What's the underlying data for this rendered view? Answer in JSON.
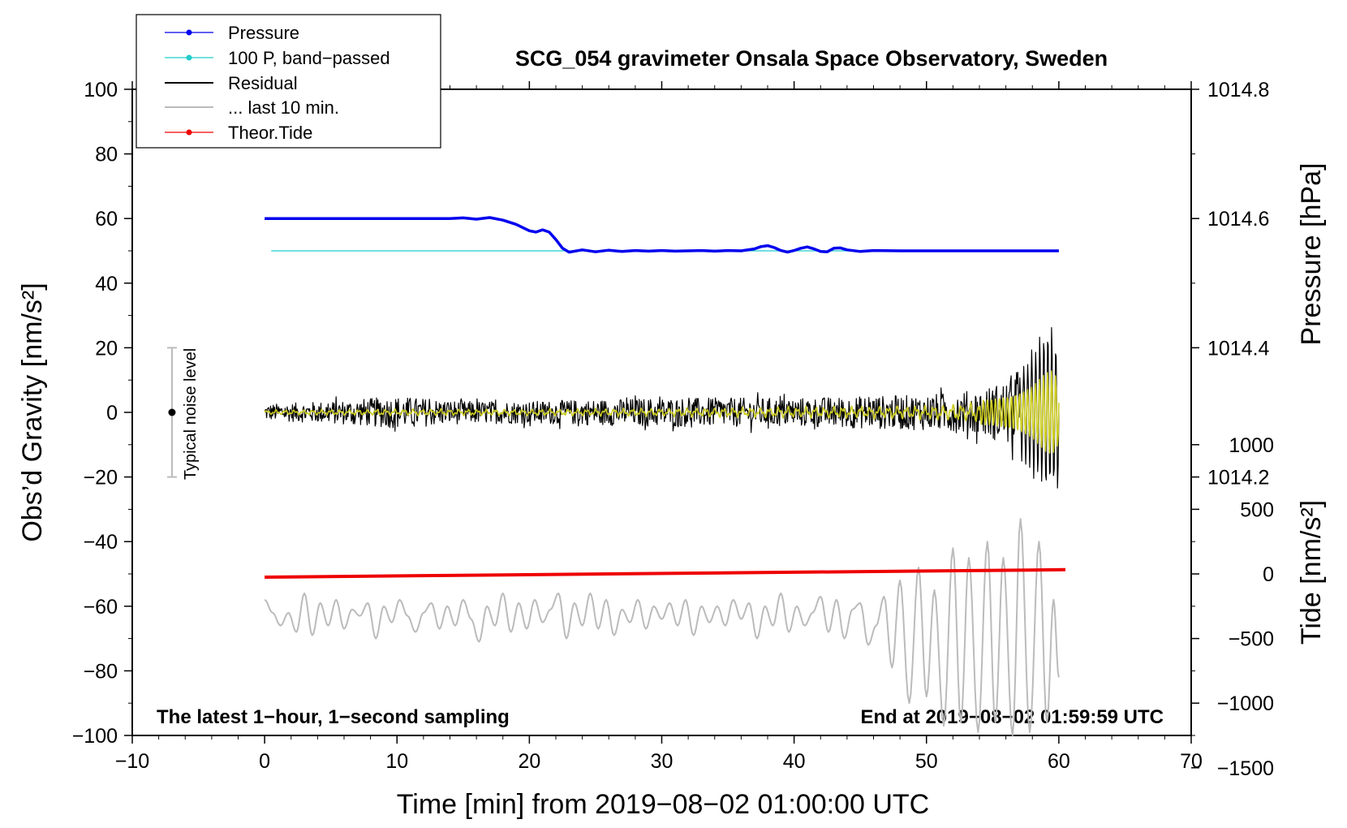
{
  "chart_data": {
    "type": "line",
    "title": "SCG_054 gravimeter Onsala Space Observatory, Sweden",
    "xlabel": "Time [min] from 2019−08−02 01:00:00 UTC",
    "ylabel_left": "Obs’d Gravity [nm/s²]",
    "ylabel_right_pressure": "Pressure [hPa]",
    "ylabel_right_tide": "Tide [nm/s²]",
    "xlim": [
      -10,
      70
    ],
    "ylim": [
      -100,
      100
    ],
    "x_ticks": [
      -10,
      0,
      10,
      20,
      30,
      40,
      50,
      60,
      70
    ],
    "x_tick_labels": [
      "−10",
      "0",
      "10",
      "20",
      "30",
      "40",
      "50",
      "60",
      "70"
    ],
    "y_ticks": [
      -100,
      -80,
      -60,
      -40,
      -20,
      0,
      20,
      40,
      60,
      80,
      100
    ],
    "y_tick_labels": [
      "−100",
      "−80",
      "−60",
      "−40",
      "−20",
      "0",
      "20",
      "40",
      "60",
      "80",
      "100"
    ],
    "pressure_axis": {
      "ticks": [
        1014.2,
        1014.4,
        1014.6,
        1014.8
      ],
      "tick_labels": [
        "1014.2",
        "1014.4",
        "1014.6",
        "1014.8"
      ],
      "gravity_per_hpa": 200,
      "ref_hpa": 1014.6,
      "ref_gravity": 60
    },
    "tide_axis": {
      "ticks": [
        1000,
        500,
        0,
        -500,
        -1000,
        -1500
      ],
      "tick_labels": [
        "1000",
        "500",
        "0",
        "−500",
        "−1000",
        "−1500"
      ],
      "gravity_per_unit": 0.04,
      "ref_tide": 0,
      "ref_gravity": -50
    },
    "legend": {
      "position": "top-left",
      "entries": [
        {
          "label": "Pressure",
          "color": "#0000ee",
          "marker": true
        },
        {
          "label": "100 P, band−passed",
          "color": "#22cccc",
          "marker": true
        },
        {
          "label": "Residual",
          "color": "#000000",
          "marker": false
        },
        {
          "label": "... last 10 min.",
          "color": "#bbbbbb",
          "marker": false
        },
        {
          "label": "Theor.Tide",
          "color": "#ee0000",
          "marker": true
        }
      ]
    },
    "annotations": {
      "bottom_left": "The latest 1−hour, 1−second sampling",
      "bottom_right": "End at 2019−08−02 01:59:59 UTC",
      "noise_label": "Typical noise level",
      "noise_bar": {
        "x": -7,
        "y_center": 0,
        "y_low": -20,
        "y_high": 20
      }
    },
    "series": [
      {
        "name": "Pressure",
        "color": "#0000ee",
        "x": [
          0,
          14,
          15,
          16,
          17,
          18,
          19,
          20,
          20.5,
          21,
          21.5,
          22,
          22.5,
          23,
          24,
          25,
          26,
          27,
          28,
          29,
          30,
          31,
          32,
          33,
          34,
          35,
          36,
          37,
          37.5,
          38,
          38.5,
          39,
          39.5,
          40,
          40.5,
          41,
          41.5,
          42,
          42.5,
          43,
          43.5,
          44,
          45,
          46,
          48,
          50,
          52,
          54,
          56,
          58,
          60
        ],
        "values": [
          60,
          60,
          60.2,
          59.8,
          60.3,
          59.5,
          58.2,
          56.2,
          55.8,
          56.5,
          55.8,
          53.5,
          50.8,
          49.6,
          50.3,
          49.7,
          50.2,
          49.8,
          50.1,
          49.9,
          50.1,
          49.9,
          50.0,
          50.1,
          49.9,
          50.1,
          50.0,
          50.6,
          51.3,
          51.6,
          51.0,
          50.1,
          49.6,
          50.1,
          50.8,
          51.2,
          50.6,
          49.8,
          49.7,
          50.8,
          50.9,
          50.3,
          49.8,
          50.1,
          50.0,
          50.0,
          50.0,
          50.0,
          50.0,
          50.0,
          50.0
        ]
      },
      {
        "name": "100 P, band−passed",
        "color": "#22cccc",
        "x": [
          0.5,
          60
        ],
        "values": [
          50,
          50
        ]
      },
      {
        "name": "Theor.Tide",
        "color": "#ee0000",
        "x": [
          0,
          60.5
        ],
        "values": [
          -51,
          -48.7
        ]
      },
      {
        "name": "Residual",
        "color": "#000000",
        "x_range": [
          0,
          60
        ],
        "sampling_seconds": 1,
        "envelope": {
          "x": [
            0,
            5,
            10,
            15,
            20,
            25,
            30,
            35,
            40,
            45,
            50,
            54,
            56,
            57,
            58,
            59,
            59.5,
            60
          ],
          "amplitude": [
            2.5,
            3.5,
            5,
            3.5,
            3.5,
            4,
            4.5,
            4.5,
            4.5,
            5,
            5.5,
            7,
            10,
            14,
            20,
            28,
            30,
            26
          ]
        }
      },
      {
        "name": "Residual (smoothed)",
        "color": "#cccc22",
        "x_range": [
          0,
          60
        ],
        "envelope": {
          "x": [
            0,
            10,
            20,
            30,
            40,
            50,
            55,
            57,
            58,
            59,
            59.5,
            60
          ],
          "amplitude": [
            0.8,
            1.2,
            1.2,
            1.5,
            2,
            2.5,
            4,
            6,
            8,
            12,
            13,
            10
          ]
        }
      },
      {
        "name": "... last 10 min.",
        "color": "#bbbbbb",
        "x_range": [
          0,
          60
        ],
        "note": "last 10 minutes of residual, 6x expanded in time",
        "x": [
          0,
          0.6,
          1.2,
          1.8,
          2.4,
          3,
          3.6,
          4.2,
          4.8,
          5.4,
          6,
          6.6,
          7.2,
          7.8,
          8.4,
          9,
          9.6,
          10.2,
          10.8,
          11.4,
          12,
          12.6,
          13.2,
          13.8,
          14.4,
          15,
          15.6,
          16.2,
          16.8,
          17.4,
          18,
          18.6,
          19.2,
          19.8,
          20.4,
          21,
          21.6,
          22.2,
          22.8,
          23.4,
          24,
          24.6,
          25.2,
          25.8,
          26.4,
          27,
          27.6,
          28.2,
          28.8,
          29.4,
          30,
          30.6,
          31.2,
          31.8,
          32.4,
          33,
          33.6,
          34.2,
          34.8,
          35.4,
          36,
          36.6,
          37.2,
          37.8,
          38.4,
          39,
          39.6,
          40.2,
          40.8,
          41.4,
          42,
          42.6,
          43.2,
          43.8,
          44.4,
          45,
          45.6,
          46.2,
          46.8,
          47.4,
          48,
          48.7,
          49.4,
          50,
          50.6,
          51.3,
          52,
          52.6,
          53.2,
          53.9,
          54.6,
          55.2,
          55.8,
          56.5,
          57.1,
          57.8,
          58.5,
          59.1,
          59.6,
          60
        ],
        "values": [
          -58,
          -62,
          -66,
          -62,
          -68,
          -56,
          -69,
          -59,
          -66,
          -58,
          -67,
          -61,
          -63,
          -59,
          -70,
          -60,
          -65,
          -58,
          -63,
          -68,
          -62,
          -59,
          -67,
          -60,
          -66,
          -58,
          -64,
          -71,
          -60,
          -66,
          -56,
          -68,
          -59,
          -67,
          -58,
          -65,
          -61,
          -56,
          -70,
          -59,
          -66,
          -56,
          -67,
          -58,
          -69,
          -61,
          -65,
          -58,
          -67,
          -60,
          -64,
          -59,
          -66,
          -58,
          -69,
          -60,
          -65,
          -60,
          -66,
          -58,
          -64,
          -59,
          -70,
          -60,
          -66,
          -56,
          -68,
          -60,
          -66,
          -62,
          -57,
          -68,
          -58,
          -70,
          -61,
          -59,
          -72,
          -66,
          -57,
          -79,
          -52,
          -90,
          -48,
          -88,
          -55,
          -97,
          -42,
          -96,
          -45,
          -99,
          -40,
          -96,
          -45,
          -100,
          -33,
          -99,
          -40,
          -96,
          -58,
          -82
        ]
      }
    ]
  }
}
